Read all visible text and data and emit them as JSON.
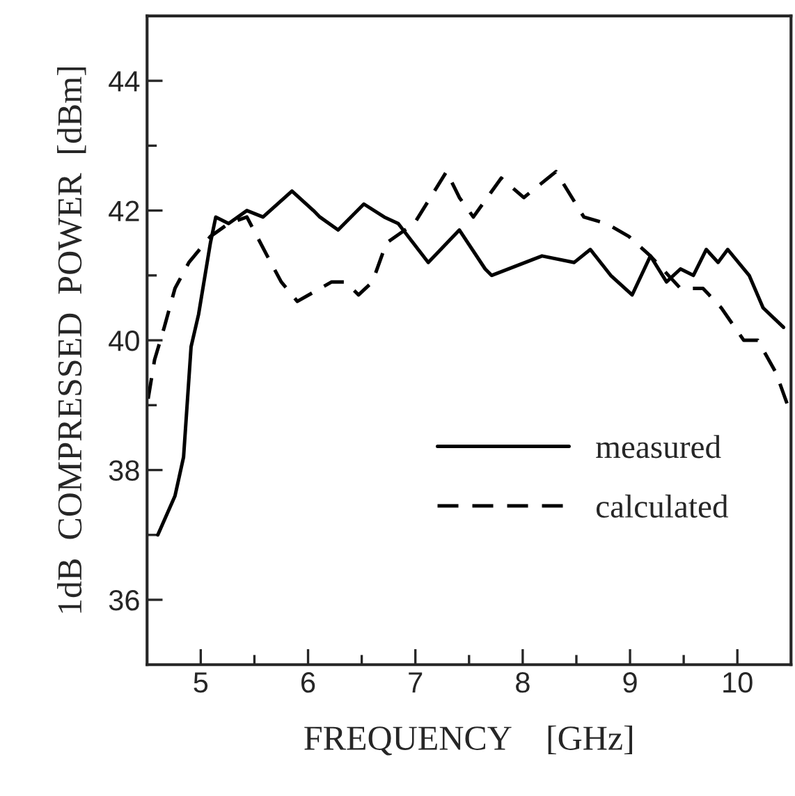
{
  "chart_data": {
    "type": "line",
    "xlabel": "FREQUENCY    [GHz]",
    "ylabel": "1dB  COMPRESSED  POWER  [dBm]",
    "xlim": [
      4.5,
      10.5
    ],
    "ylim": [
      35,
      45
    ],
    "xticks": [
      5,
      {
        "value": 5.5,
        "label": null
      },
      6,
      {
        "value": 6.5,
        "label": null
      },
      7,
      {
        "value": 7.5,
        "label": null
      },
      8,
      {
        "value": 8.5,
        "label": null
      },
      9,
      {
        "value": 9.5,
        "label": null
      },
      10
    ],
    "yticks": [
      36,
      {
        "value": 37,
        "label": null
      },
      38,
      {
        "value": 39,
        "label": null
      },
      40,
      {
        "value": 41,
        "label": null
      },
      42,
      {
        "value": 43,
        "label": null
      },
      44
    ],
    "grid": false,
    "legend": "bottom right",
    "series": [
      {
        "name": "measured",
        "color": "#000000",
        "line_style": "solid",
        "x": [
          4.6,
          4.76,
          4.84,
          4.91,
          4.98,
          5.09,
          5.14,
          5.26,
          5.43,
          5.58,
          5.85,
          6.05,
          6.11,
          6.28,
          6.52,
          6.71,
          6.84,
          7.12,
          7.41,
          7.65,
          7.71,
          8.18,
          8.48,
          8.63,
          8.82,
          9.02,
          9.19,
          9.34,
          9.47,
          9.59,
          9.71,
          9.82,
          9.91,
          10.11,
          10.24,
          10.43
        ],
        "values": [
          37.0,
          37.6,
          38.2,
          39.9,
          40.4,
          41.5,
          41.9,
          41.8,
          42.0,
          41.9,
          42.3,
          42.0,
          41.9,
          41.7,
          42.1,
          41.9,
          41.8,
          41.2,
          41.7,
          41.1,
          41.0,
          41.3,
          41.2,
          41.4,
          41.0,
          40.7,
          41.3,
          40.9,
          41.1,
          41.0,
          41.4,
          41.2,
          41.4,
          41.0,
          40.5,
          40.2
        ]
      },
      {
        "name": "calculated",
        "color": "#000000",
        "line_style": "dashed",
        "x": [
          4.51,
          4.57,
          4.66,
          4.76,
          4.89,
          5.09,
          5.26,
          5.43,
          5.62,
          5.75,
          5.9,
          6.22,
          6.35,
          6.47,
          6.6,
          6.73,
          6.99,
          7.29,
          7.41,
          7.54,
          7.8,
          8.01,
          8.31,
          8.57,
          8.78,
          8.99,
          9.19,
          9.47,
          9.68,
          9.85,
          10.06,
          10.19,
          10.36,
          10.49
        ],
        "values": [
          39.1,
          39.7,
          40.2,
          40.8,
          41.2,
          41.6,
          41.8,
          41.9,
          41.3,
          40.9,
          40.6,
          40.9,
          40.9,
          40.7,
          40.9,
          41.5,
          41.8,
          42.6,
          42.2,
          41.9,
          42.5,
          42.2,
          42.6,
          41.9,
          41.8,
          41.6,
          41.3,
          40.8,
          40.8,
          40.5,
          40.0,
          40.0,
          39.5,
          38.9
        ]
      }
    ]
  }
}
